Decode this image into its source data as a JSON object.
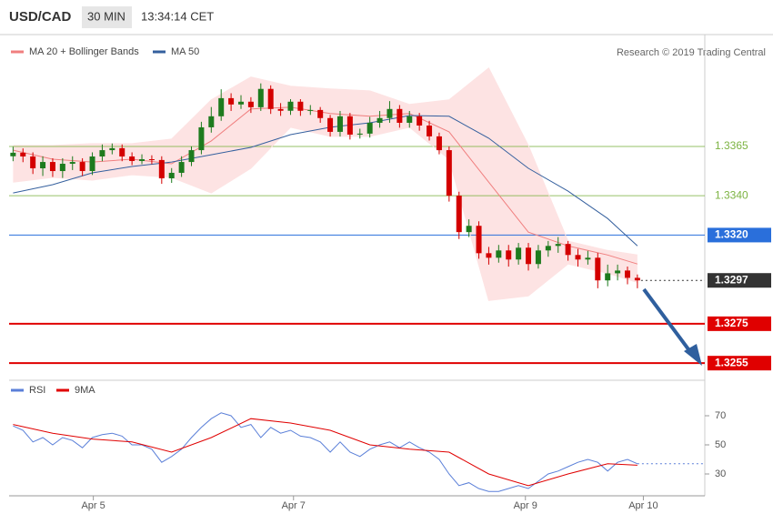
{
  "header": {
    "symbol": "USD/CAD",
    "timeframe": "30 MIN",
    "time": "13:34:14 CET"
  },
  "credit": "Research © 2019 Trading Central",
  "chart_data": [
    {
      "type": "candlestick",
      "up_color": "#1e7b1e",
      "down_color": "#d40000",
      "xlim": [
        -0.4,
        69.8
      ],
      "ylim": [
        1.325,
        1.3407
      ],
      "x": [
        0,
        1,
        2,
        3,
        4,
        5,
        6,
        7,
        8,
        9,
        10,
        11,
        12,
        13,
        14,
        15,
        16,
        17,
        18,
        19,
        20,
        21,
        22,
        23,
        24,
        25,
        26,
        27,
        28,
        29,
        30,
        31,
        32,
        33,
        34,
        35,
        36,
        37,
        38,
        39,
        40,
        41,
        42,
        43,
        44,
        45,
        46,
        47,
        48,
        49,
        50,
        51,
        52,
        53,
        54,
        55,
        56,
        57,
        58,
        59,
        60,
        61,
        62,
        63
      ],
      "open": [
        1.336,
        1.33618,
        1.33599,
        1.33539,
        1.33571,
        1.33525,
        1.33562,
        1.33571,
        1.33525,
        1.33599,
        1.33631,
        1.33641,
        1.33599,
        1.33576,
        1.33585,
        1.33581,
        1.33488,
        1.33516,
        1.33571,
        1.33631,
        1.33747,
        1.33803,
        1.33895,
        1.33863,
        1.33877,
        1.33849,
        1.33942,
        1.3384,
        1.33831,
        1.33877,
        1.33831,
        1.33835,
        1.33794,
        1.33724,
        1.33803,
        1.3371,
        1.33715,
        1.3377,
        1.33794,
        1.3384,
        1.3377,
        1.33803,
        1.33756,
        1.33701,
        1.33631,
        1.334,
        1.33215,
        1.33247,
        1.33108,
        1.33085,
        1.33122,
        1.33076,
        1.33136,
        1.33053,
        1.33122,
        1.33145,
        1.33155,
        1.33099,
        1.33076,
        1.33085,
        1.3297,
        1.33006,
        1.3302,
        1.32983
      ],
      "high": [
        1.33648,
        1.3364,
        1.3362,
        1.336,
        1.3359,
        1.3359,
        1.336,
        1.3359,
        1.3362,
        1.3366,
        1.33665,
        1.3366,
        1.3362,
        1.3361,
        1.33605,
        1.336,
        1.3354,
        1.336,
        1.3365,
        1.33775,
        1.3385,
        1.3394,
        1.3392,
        1.3391,
        1.339,
        1.3397,
        1.3396,
        1.3387,
        1.3389,
        1.3389,
        1.3386,
        1.3385,
        1.3381,
        1.3383,
        1.3382,
        1.3374,
        1.338,
        1.3383,
        1.3388,
        1.3386,
        1.3383,
        1.3382,
        1.3378,
        1.3372,
        1.3365,
        1.3342,
        1.3328,
        1.3327,
        1.3314,
        1.3315,
        1.3315,
        1.3316,
        1.3316,
        1.3315,
        1.3317,
        1.3319,
        1.3317,
        1.3313,
        1.3312,
        1.3311,
        1.3305,
        1.3305,
        1.3304,
        1.33
      ],
      "low": [
        1.33575,
        1.3357,
        1.3351,
        1.335,
        1.33495,
        1.3349,
        1.3353,
        1.335,
        1.33505,
        1.33575,
        1.3361,
        1.33575,
        1.33555,
        1.3356,
        1.3356,
        1.3346,
        1.33465,
        1.33495,
        1.3355,
        1.3361,
        1.3372,
        1.3378,
        1.3383,
        1.3384,
        1.3382,
        1.3383,
        1.33815,
        1.33805,
        1.3381,
        1.33805,
        1.3381,
        1.3377,
        1.337,
        1.337,
        1.33685,
        1.3369,
        1.33695,
        1.33745,
        1.3377,
        1.33745,
        1.33745,
        1.3373,
        1.3368,
        1.3361,
        1.3337,
        1.3318,
        1.3319,
        1.3308,
        1.3305,
        1.3306,
        1.3304,
        1.3305,
        1.3302,
        1.3303,
        1.3309,
        1.3311,
        1.3307,
        1.3304,
        1.3305,
        1.3293,
        1.3294,
        1.3297,
        1.3295,
        1.3293
      ],
      "close": [
        1.33618,
        1.33599,
        1.33539,
        1.33571,
        1.33525,
        1.33562,
        1.33571,
        1.33525,
        1.33599,
        1.33631,
        1.33641,
        1.33599,
        1.33576,
        1.33585,
        1.33581,
        1.33488,
        1.33516,
        1.33571,
        1.33631,
        1.33747,
        1.33803,
        1.33895,
        1.33863,
        1.33877,
        1.33849,
        1.33942,
        1.3384,
        1.33831,
        1.33877,
        1.33831,
        1.33835,
        1.33794,
        1.33724,
        1.33803,
        1.3371,
        1.33715,
        1.3377,
        1.33794,
        1.3384,
        1.3377,
        1.33803,
        1.33756,
        1.33701,
        1.33631,
        1.334,
        1.33215,
        1.33247,
        1.33108,
        1.33085,
        1.33122,
        1.33076,
        1.33136,
        1.33053,
        1.33122,
        1.33145,
        1.33155,
        1.33099,
        1.33076,
        1.33085,
        1.3297,
        1.33006,
        1.3302,
        1.32983,
        1.3297
      ],
      "series": [
        {
          "name": "MA 20 + Bollinger Bands",
          "color": "#f07f7f",
          "band_color": "#fde3e3",
          "x": [
            0,
            4,
            8,
            12,
            16,
            20,
            24,
            28,
            32,
            36,
            40,
            44,
            48,
            52,
            56,
            60,
            63
          ],
          "values": [
            1.33631,
            1.33585,
            1.33571,
            1.33585,
            1.33562,
            1.33678,
            1.3384,
            1.33849,
            1.33817,
            1.33803,
            1.33817,
            1.33724,
            1.33469,
            1.33215,
            1.33145,
            1.33099,
            1.33053
          ],
          "upper": [
            1.33655,
            1.33655,
            1.33664,
            1.33664,
            1.33687,
            1.33886,
            1.34002,
            1.33956,
            1.33942,
            1.33932,
            1.33863,
            1.33886,
            1.34048,
            1.33655,
            1.33169,
            1.33122,
            1.33099
          ],
          "lower": [
            1.33469,
            1.33493,
            1.33479,
            1.33506,
            1.33493,
            1.33414,
            1.33539,
            1.33747,
            1.33701,
            1.33701,
            1.33747,
            1.33585,
            1.32868,
            1.32891,
            1.33053,
            1.33006,
            1.3296
          ]
        },
        {
          "name": "MA 50",
          "color": "#35609e",
          "x": [
            0,
            4,
            8,
            12,
            16,
            20,
            24,
            28,
            32,
            36,
            40,
            44,
            48,
            52,
            56,
            60,
            63
          ],
          "values": [
            1.33414,
            1.33456,
            1.33516,
            1.33548,
            1.33571,
            1.33608,
            1.33645,
            1.3371,
            1.33747,
            1.3377,
            1.33807,
            1.33803,
            1.33692,
            1.33539,
            1.33423,
            1.33284,
            1.33145
          ]
        }
      ],
      "levels": [
        {
          "value": 1.3365,
          "label": "1.3365",
          "color": "#7cb342",
          "style": "text"
        },
        {
          "value": 1.334,
          "label": "1.3340",
          "color": "#7cb342",
          "style": "text"
        },
        {
          "value": 1.332,
          "label": "1.3320",
          "color": "#2a6fdb",
          "style": "box"
        },
        {
          "value": 1.3297,
          "label": "1.3297",
          "color": "#333333",
          "style": "dotted"
        },
        {
          "value": 1.3275,
          "label": "1.3275",
          "color": "#e00000",
          "style": "thick"
        },
        {
          "value": 1.3255,
          "label": "1.3255",
          "color": "#e00000",
          "style": "thick"
        }
      ]
    },
    {
      "type": "line",
      "xlim": [
        -0.4,
        69.8
      ],
      "ylim": [
        15,
        85
      ],
      "yticks": [
        30,
        50,
        70
      ],
      "xticks": [
        {
          "value": 8.1,
          "label": "Apr 5"
        },
        {
          "value": 28.3,
          "label": "Apr 7"
        },
        {
          "value": 51.7,
          "label": "Apr 9"
        },
        {
          "value": 63.6,
          "label": "Apr 10"
        }
      ],
      "series": [
        {
          "name": "RSI",
          "color": "#5a7fd8",
          "x": [
            0,
            1,
            2,
            3,
            4,
            5,
            6,
            7,
            8,
            9,
            10,
            11,
            12,
            13,
            14,
            15,
            16,
            17,
            18,
            19,
            20,
            21,
            22,
            23,
            24,
            25,
            26,
            27,
            28,
            29,
            30,
            31,
            32,
            33,
            34,
            35,
            36,
            37,
            38,
            39,
            40,
            41,
            42,
            43,
            44,
            45,
            46,
            47,
            48,
            49,
            50,
            51,
            52,
            53,
            54,
            55,
            56,
            57,
            58,
            59,
            60,
            61,
            62,
            63
          ],
          "values": [
            63,
            60,
            52,
            55,
            50,
            55,
            53,
            48,
            55,
            57,
            58,
            56,
            50,
            50,
            47,
            38,
            42,
            47,
            55,
            62,
            68,
            72,
            70,
            62,
            64,
            55,
            62,
            58,
            60,
            56,
            55,
            52,
            45,
            52,
            45,
            42,
            47,
            50,
            52,
            48,
            52,
            48,
            45,
            40,
            30,
            22,
            24,
            20,
            18,
            18,
            20,
            22,
            20,
            25,
            30,
            32,
            35,
            38,
            40,
            38,
            32,
            38,
            40,
            37
          ]
        },
        {
          "name": "9MA",
          "color": "#e00000",
          "x": [
            0,
            4,
            8,
            12,
            16,
            20,
            24,
            28,
            32,
            36,
            40,
            44,
            48,
            52,
            56,
            60,
            63
          ],
          "values": [
            64,
            58,
            54,
            52,
            45,
            55,
            68,
            65,
            60,
            50,
            47,
            45,
            30,
            22,
            30,
            37,
            36
          ]
        }
      ]
    }
  ]
}
